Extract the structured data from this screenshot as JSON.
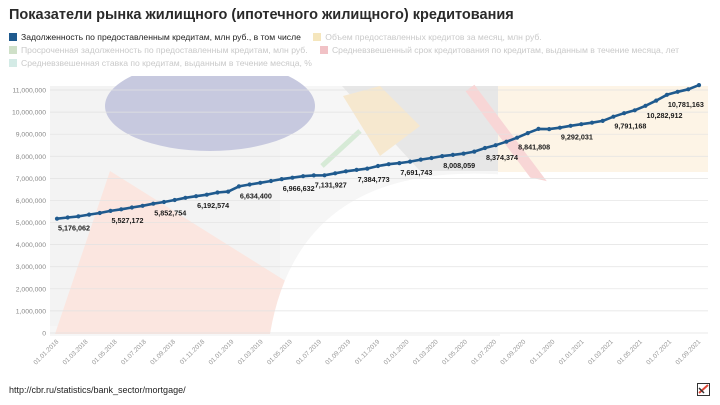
{
  "title": "Показатели рынка жилищного (ипотечного жилищного) кредитования",
  "source": "http://cbr.ru/statistics/bank_sector/mortgage/",
  "colors": {
    "main": "#1f5a8e",
    "volume": "#f5e6bd",
    "overdue": "#cfe0c8",
    "term": "#f1c2c6",
    "rate": "#d4ebe6"
  },
  "legend": [
    {
      "label": "Задолженность по предоставленным кредитам, млн руб., в том числе",
      "color": "#1f5a8e",
      "faded": false
    },
    {
      "label": "Объем предоставленных кредитов за месяц, млн руб.",
      "color": "#f5e6bd",
      "faded": true
    },
    {
      "label": "Просроченная задолженность по предоставленным кредитам, млн руб.",
      "color": "#cfe0c8",
      "faded": true
    },
    {
      "label": "Средневзвешенный срок кредитования по кредитам, выданным в течение месяца, лет",
      "color": "#f1c2c6",
      "faded": true
    },
    {
      "label": "Средневзвешенная ставка по кредитам, выданным в течение месяца, %",
      "color": "#d4ebe6",
      "faded": true
    }
  ],
  "chart_data": {
    "type": "line",
    "ylim": [
      0,
      11000000
    ],
    "y_ticks": [
      0,
      1000000,
      2000000,
      3000000,
      4000000,
      5000000,
      6000000,
      7000000,
      8000000,
      9000000,
      10000000,
      11000000
    ],
    "y_tick_labels": [
      "0",
      "1,000,000",
      "2,000,000",
      "3,000,000",
      "4,000,000",
      "5,000,000",
      "6,000,000",
      "7,000,000",
      "8,000,000",
      "9,000,000",
      "10,000,000",
      "11,000,000"
    ],
    "x_tick_labels": [
      "01.01.2018",
      "01.03.2018",
      "01.05.2018",
      "01.07.2018",
      "01.09.2018",
      "01.11.2018",
      "01.01.2019",
      "01.03.2019",
      "01.05.2019",
      "01.07.2019",
      "01.09.2019",
      "01.11.2019",
      "01.01.2020",
      "01.03.2020",
      "01.05.2020",
      "01.07.2020",
      "01.09.2020",
      "01.11.2020",
      "01.01.2021",
      "01.03.2021",
      "01.05.2021",
      "01.07.2021",
      "01.09.2021"
    ],
    "series": [
      {
        "name": "Задолженность по предоставленным кредитам, млн руб., в том числе",
        "color": "#1f5a8e",
        "values": [
          5176062,
          5230000,
          5280000,
          5360000,
          5430000,
          5527172,
          5600000,
          5680000,
          5760000,
          5852754,
          5930000,
          6020000,
          6120000,
          6192574,
          6260000,
          6360000,
          6400000,
          6634400,
          6720000,
          6800000,
          6880000,
          6966632,
          7030000,
          7100000,
          7131927,
          7140000,
          7230000,
          7320000,
          7384773,
          7440000,
          7560000,
          7640000,
          7691743,
          7760000,
          7850000,
          7920000,
          8008059,
          8060000,
          8120000,
          8210000,
          8374374,
          8500000,
          8660000,
          8841808,
          9050000,
          9240000,
          9230000,
          9292031,
          9380000,
          9450000,
          9520000,
          9600000,
          9791168,
          9950000,
          10080000,
          10282912,
          10520000,
          10781163,
          10920000,
          11030000,
          11220000
        ]
      }
    ],
    "data_labels": [
      {
        "index": 0,
        "text": "5,176,062"
      },
      {
        "index": 5,
        "text": "5,527,172"
      },
      {
        "index": 9,
        "text": "5,852,754"
      },
      {
        "index": 13,
        "text": "6,192,574"
      },
      {
        "index": 17,
        "text": "6,634,400"
      },
      {
        "index": 21,
        "text": "6,966,632"
      },
      {
        "index": 24,
        "text": "7,131,927"
      },
      {
        "index": 28,
        "text": "7,384,773"
      },
      {
        "index": 32,
        "text": "7,691,743"
      },
      {
        "index": 36,
        "text": "8,008,059"
      },
      {
        "index": 40,
        "text": "8,374,374"
      },
      {
        "index": 43,
        "text": "8,841,808"
      },
      {
        "index": 47,
        "text": "9,292,031"
      },
      {
        "index": 52,
        "text": "9,791,168"
      },
      {
        "index": 55,
        "text": "10,282,912"
      },
      {
        "index": 57,
        "text": "10,781,163"
      }
    ],
    "grid": true
  }
}
